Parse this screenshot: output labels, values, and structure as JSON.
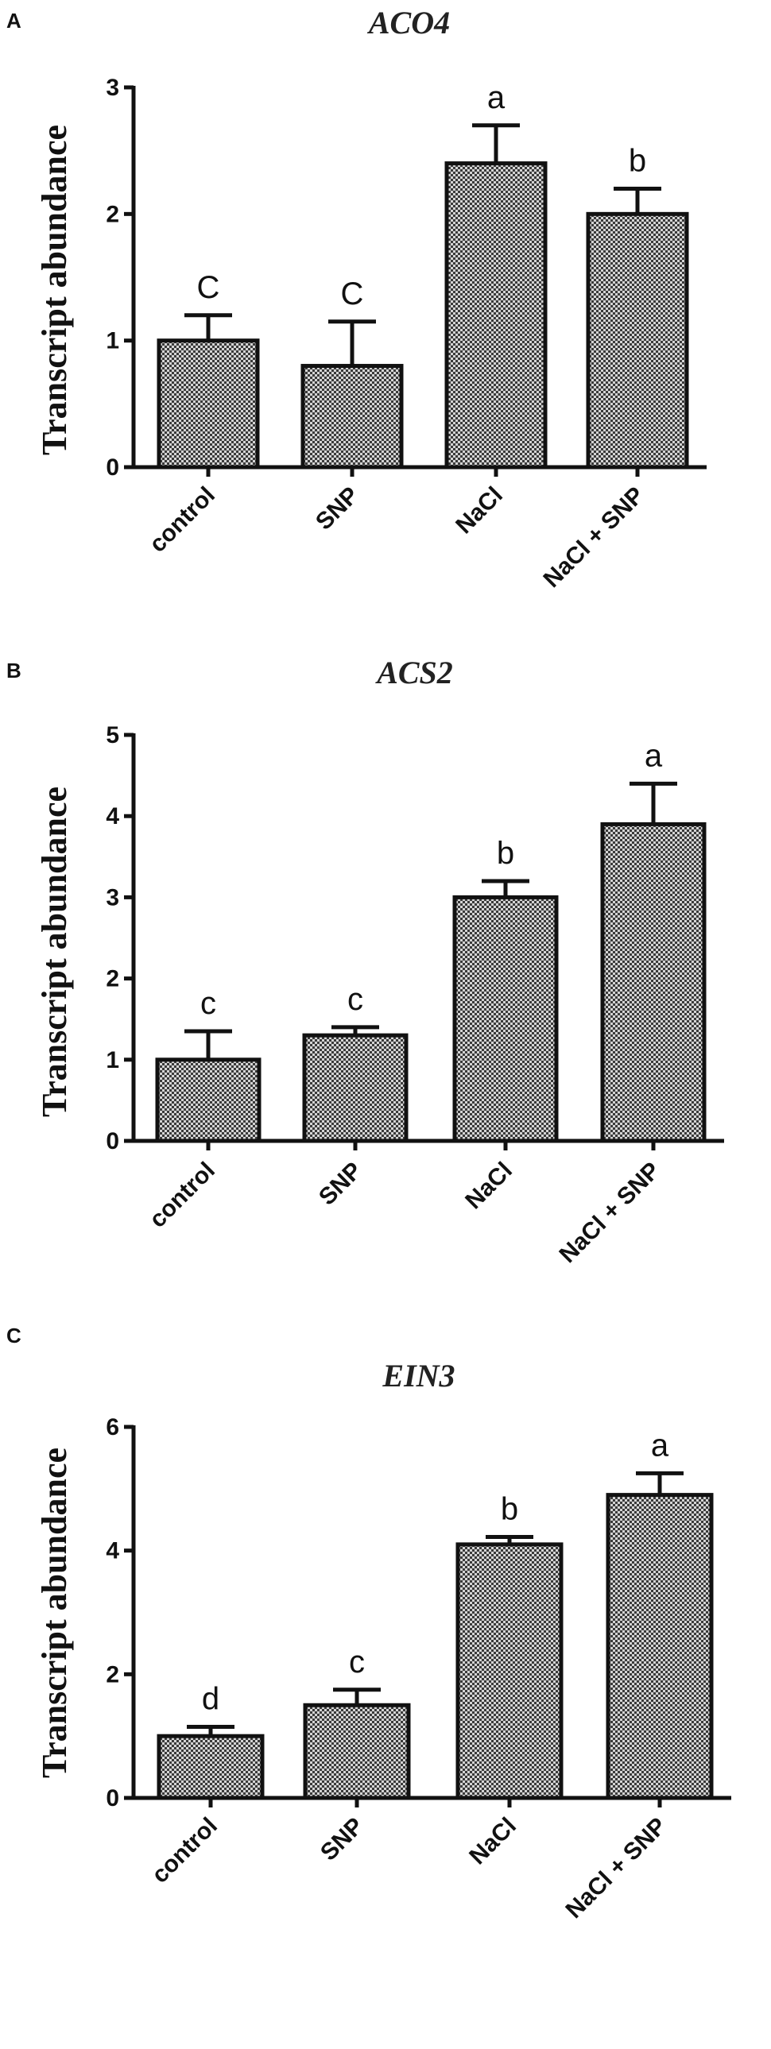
{
  "chart_data": [
    {
      "panel": "A",
      "type": "bar",
      "title": "ACO4",
      "ylabel": "Transcript abundance",
      "xlabel": "",
      "categories": [
        "control",
        "SNP",
        "NaCl",
        "NaCl + SNP"
      ],
      "values": [
        1.0,
        0.8,
        2.4,
        2.0
      ],
      "errors": [
        0.2,
        0.35,
        0.3,
        0.2
      ],
      "significance": [
        "C",
        "C",
        "a",
        "b"
      ],
      "ylim": [
        0,
        3
      ],
      "yticks": [
        0,
        1,
        2,
        3
      ],
      "grid": false,
      "fill": "checkered grey"
    },
    {
      "panel": "B",
      "type": "bar",
      "title": "ACS2",
      "ylabel": "Transcript abundance",
      "xlabel": "",
      "categories": [
        "control",
        "SNP",
        "NaCl",
        "NaCl + SNP"
      ],
      "values": [
        1.0,
        1.3,
        3.0,
        3.9
      ],
      "errors": [
        0.35,
        0.1,
        0.2,
        0.5
      ],
      "significance": [
        "c",
        "c",
        "b",
        "a"
      ],
      "ylim": [
        0,
        5
      ],
      "yticks": [
        0,
        1,
        2,
        3,
        4,
        5
      ],
      "grid": false,
      "fill": "checkered grey"
    },
    {
      "panel": "C",
      "type": "bar",
      "title": "EIN3",
      "ylabel": "Transcript abundance",
      "xlabel": "",
      "categories": [
        "control",
        "SNP",
        "NaCl",
        "NaCl + SNP"
      ],
      "values": [
        1.0,
        1.5,
        4.1,
        4.9
      ],
      "errors": [
        0.15,
        0.25,
        0.12,
        0.35
      ],
      "significance": [
        "d",
        "c",
        "b",
        "a"
      ],
      "ylim": [
        0,
        6
      ],
      "yticks": [
        0,
        2,
        4,
        6
      ],
      "grid": false,
      "fill": "checkered grey"
    }
  ]
}
